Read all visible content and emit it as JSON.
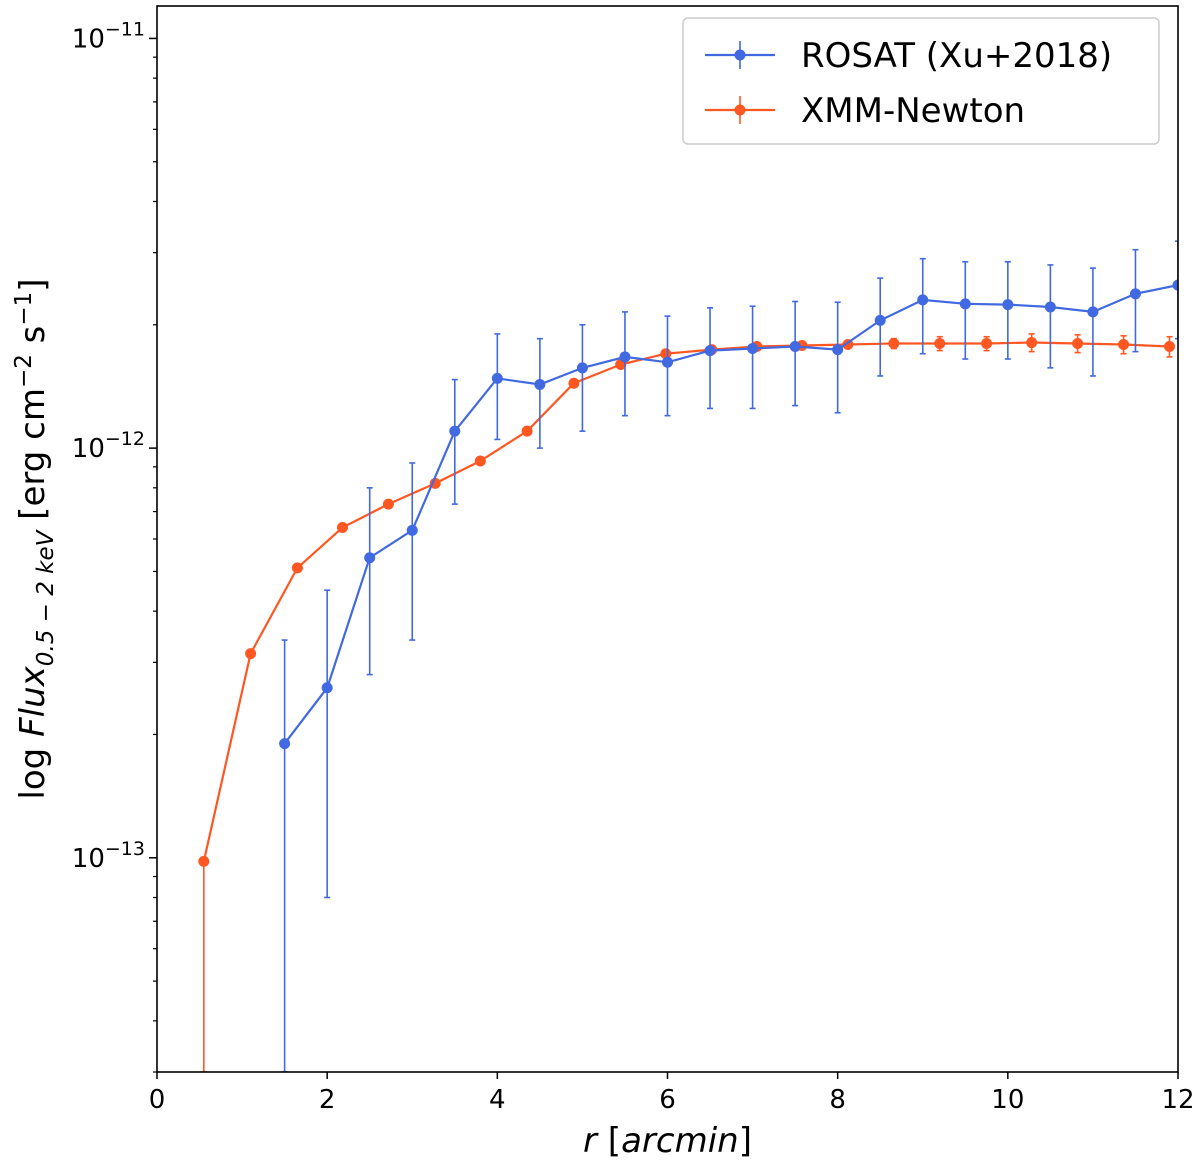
{
  "chart_data": {
    "type": "line",
    "yscale": "log",
    "xlabel_main": "r",
    "xlabel_unit": "arcmin",
    "ylabel_prefix": "log",
    "ylabel_var": "Flux",
    "ylabel_sub": "0.5 − 2 keV",
    "ylabel_unit_pre": "[erg cm",
    "ylabel_exp1": "−2",
    "ylabel_mid": " s",
    "ylabel_exp2": "−1",
    "ylabel_end": "]",
    "xlim": [
      0,
      12
    ],
    "ylim": [
      3e-14,
      1.2e-11
    ],
    "x_ticks": [
      0,
      2,
      4,
      6,
      8,
      10,
      12
    ],
    "x_tick_labels": [
      "0",
      "2",
      "4",
      "6",
      "8",
      "10",
      "12"
    ],
    "y_major_ticks": [
      1e-13,
      1e-12,
      1e-11
    ],
    "y_tick_labels": [
      {
        "base": "10",
        "exp": "−13"
      },
      {
        "base": "10",
        "exp": "−12"
      },
      {
        "base": "10",
        "exp": "−11"
      }
    ],
    "legend_location": "top-right",
    "series": [
      {
        "name": "ROSAT (Xu+2018)",
        "color": "#4169e1",
        "x": [
          1.5,
          2.0,
          2.5,
          3.0,
          3.5,
          4.0,
          4.5,
          5.0,
          5.5,
          6.0,
          6.5,
          7.0,
          7.5,
          8.0,
          8.5,
          9.0,
          9.5,
          10.0,
          10.5,
          11.0,
          11.5,
          12.0
        ],
        "y": [
          1.9e-13,
          2.6e-13,
          5.4e-13,
          6.3e-13,
          1.1e-12,
          1.48e-12,
          1.43e-12,
          1.57e-12,
          1.67e-12,
          1.62e-12,
          1.73e-12,
          1.75e-12,
          1.77e-12,
          1.74e-12,
          2.05e-12,
          2.3e-12,
          2.25e-12,
          2.24e-12,
          2.21e-12,
          2.15e-12,
          2.38e-12,
          2.5e-12
        ],
        "ylow": [
          3e-14,
          8e-14,
          2.8e-13,
          3.4e-13,
          7.3e-13,
          1.05e-12,
          1e-12,
          1.1e-12,
          1.2e-12,
          1.2e-12,
          1.25e-12,
          1.25e-12,
          1.27e-12,
          1.22e-12,
          1.5e-12,
          1.7e-12,
          1.65e-12,
          1.65e-12,
          1.57e-12,
          1.5e-12,
          1.72e-12,
          1.85e-12
        ],
        "yhigh": [
          3.4e-13,
          4.5e-13,
          8e-13,
          9.2e-13,
          1.47e-12,
          1.9e-12,
          1.85e-12,
          2e-12,
          2.15e-12,
          2.1e-12,
          2.2e-12,
          2.22e-12,
          2.28e-12,
          2.27e-12,
          2.6e-12,
          2.9e-12,
          2.85e-12,
          2.85e-12,
          2.8e-12,
          2.75e-12,
          3.05e-12,
          3.2e-12
        ]
      },
      {
        "name": "XMM-Newton",
        "color": "#ff5722",
        "x": [
          0.55,
          1.1,
          1.65,
          2.18,
          2.72,
          3.27,
          3.8,
          4.35,
          4.9,
          5.45,
          5.98,
          6.52,
          7.05,
          7.58,
          8.12,
          8.66,
          9.2,
          9.75,
          10.28,
          10.82,
          11.36,
          11.9
        ],
        "y": [
          9.8e-14,
          3.15e-13,
          5.1e-13,
          6.4e-13,
          7.3e-13,
          8.2e-13,
          9.3e-13,
          1.1e-12,
          1.44e-12,
          1.6e-12,
          1.7e-12,
          1.74e-12,
          1.77e-12,
          1.78e-12,
          1.79e-12,
          1.8e-12,
          1.8e-12,
          1.8e-12,
          1.81e-12,
          1.8e-12,
          1.79e-12,
          1.77e-12
        ],
        "ylow": [
          3e-14,
          3.1e-13,
          5.05e-13,
          6.35e-13,
          7.25e-13,
          8.15e-13,
          9.25e-13,
          1.09e-12,
          1.43e-12,
          1.58e-12,
          1.68e-12,
          1.72e-12,
          1.75e-12,
          1.76e-12,
          1.76e-12,
          1.75e-12,
          1.73e-12,
          1.73e-12,
          1.72e-12,
          1.71e-12,
          1.7e-12,
          1.67e-12
        ],
        "yhigh": [
          1e-13,
          3.2e-13,
          5.15e-13,
          6.45e-13,
          7.35e-13,
          8.25e-13,
          9.35e-13,
          1.11e-12,
          1.45e-12,
          1.62e-12,
          1.72e-12,
          1.76e-12,
          1.79e-12,
          1.8e-12,
          1.82e-12,
          1.85e-12,
          1.87e-12,
          1.87e-12,
          1.9e-12,
          1.89e-12,
          1.88e-12,
          1.87e-12
        ]
      }
    ]
  }
}
